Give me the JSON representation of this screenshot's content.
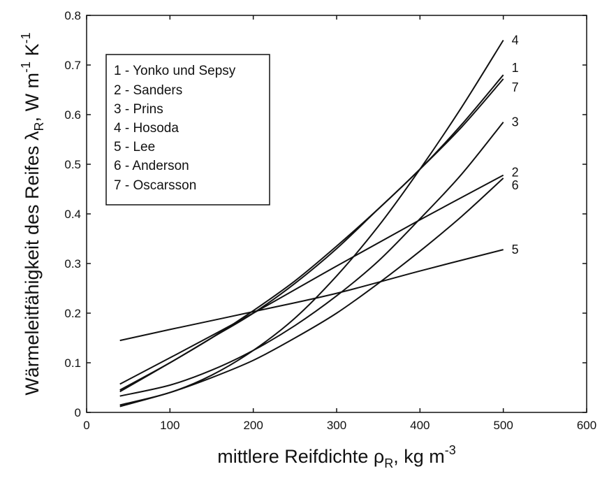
{
  "chart_data": {
    "type": "line",
    "xlabel": {
      "main": "mittlere Reifdichte ρ",
      "sub": "R",
      "rest": ", kg m",
      "sup": "-3"
    },
    "ylabel": {
      "main": "Wärmeleitfähigkeit des Reifes λ",
      "sub": "R",
      "rest": ", W m",
      "sup1": "-1",
      "rest2": " K",
      "sup2": "-1"
    },
    "xlim": [
      0,
      600
    ],
    "ylim": [
      0,
      0.8
    ],
    "xticks": [
      0,
      100,
      200,
      300,
      400,
      500,
      600
    ],
    "yticks": [
      0,
      0.1,
      0.2,
      0.3,
      0.4,
      0.5,
      0.6,
      0.7,
      0.8
    ],
    "xtick_labels": [
      "0",
      "100",
      "200",
      "300",
      "400",
      "500",
      "600"
    ],
    "ytick_labels": [
      "0",
      "0.1",
      "0.2",
      "0.3",
      "0.4",
      "0.5",
      "0.6",
      "0.7",
      "0.8"
    ],
    "grid": false,
    "legend_position": "top-left",
    "legend": [
      "1 - Yonko und Sepsy",
      "2 - Sanders",
      "3 - Prins",
      "4 - Hosoda",
      "5 - Lee",
      "6 - Anderson",
      "7 - Oscarsson"
    ],
    "series": [
      {
        "label": "1",
        "x": [
          40,
          100,
          150,
          200,
          250,
          300,
          350,
          400,
          450,
          500
        ],
        "y": [
          0.045,
          0.1,
          0.15,
          0.2,
          0.26,
          0.33,
          0.41,
          0.49,
          0.58,
          0.68
        ]
      },
      {
        "label": "2",
        "x": [
          40,
          100,
          200,
          300,
          400,
          500
        ],
        "y": [
          0.057,
          0.11,
          0.2,
          0.295,
          0.388,
          0.478
        ]
      },
      {
        "label": "3",
        "x": [
          40,
          100,
          150,
          200,
          250,
          300,
          350,
          400,
          450,
          500
        ],
        "y": [
          0.033,
          0.055,
          0.085,
          0.125,
          0.175,
          0.235,
          0.305,
          0.39,
          0.48,
          0.585
        ]
      },
      {
        "label": "4",
        "x": [
          40,
          100,
          150,
          200,
          250,
          300,
          350,
          400,
          450,
          500
        ],
        "y": [
          0.015,
          0.04,
          0.075,
          0.125,
          0.19,
          0.275,
          0.375,
          0.49,
          0.615,
          0.75
        ]
      },
      {
        "label": "5",
        "x": [
          40,
          100,
          200,
          300,
          400,
          500
        ],
        "y": [
          0.145,
          0.167,
          0.203,
          0.24,
          0.285,
          0.328
        ]
      },
      {
        "label": "6",
        "x": [
          40,
          100,
          150,
          200,
          250,
          300,
          350,
          400,
          450,
          500
        ],
        "y": [
          0.012,
          0.04,
          0.07,
          0.105,
          0.15,
          0.2,
          0.26,
          0.325,
          0.395,
          0.472
        ]
      },
      {
        "label": "7",
        "x": [
          40,
          100,
          150,
          200,
          250,
          300,
          350,
          400,
          450,
          500
        ],
        "y": [
          0.042,
          0.1,
          0.15,
          0.205,
          0.265,
          0.335,
          0.41,
          0.49,
          0.575,
          0.672
        ]
      }
    ]
  }
}
